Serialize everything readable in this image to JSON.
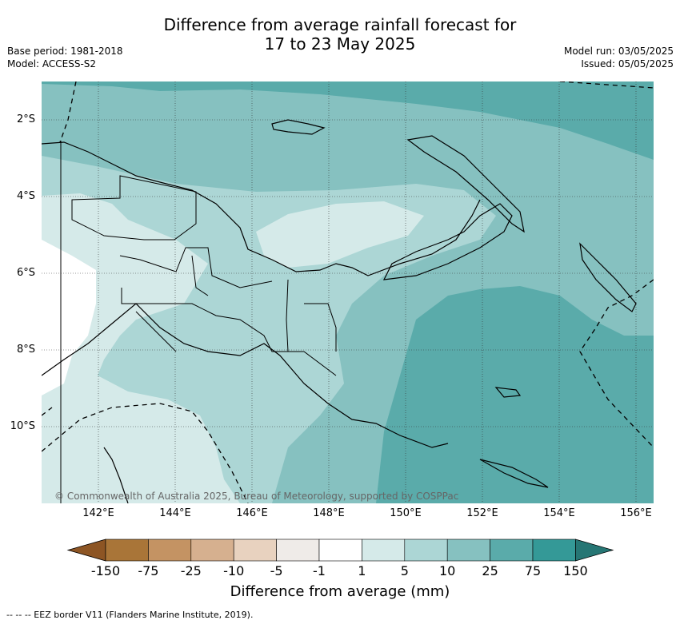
{
  "title_line1": "Difference from average rainfall forecast for",
  "title_line2": "17 to 23 May 2025",
  "left_meta": {
    "line1": "Base period: 1981-2018",
    "line2": "Model: ACCESS-S2"
  },
  "right_meta": {
    "line1": "Model run: 03/05/2025",
    "line2": "Issued: 05/05/2025"
  },
  "copyright": "© Commonwealth of Australia 2025, Bureau of Meteorology, supported by COSPPac",
  "longitudes": [
    "142°E",
    "144°E",
    "146°E",
    "148°E",
    "150°E",
    "152°E",
    "154°E",
    "156°E"
  ],
  "latitudes": [
    "2°S",
    "4°S",
    "6°S",
    "8°S",
    "10°S"
  ],
  "colorbar": {
    "title": "Difference from average (mm)",
    "ticks": [
      "-150",
      "-75",
      "-25",
      "-10",
      "-5",
      "-1",
      "1",
      "5",
      "10",
      "25",
      "75",
      "150"
    ],
    "colors": [
      "#8d5524",
      "#a97538",
      "#c49363",
      "#d6b08f",
      "#e8d2bf",
      "#efebe8",
      "#ffffff",
      "#d5eae9",
      "#acd6d5",
      "#86c1c0",
      "#5aabaa",
      "#349997",
      "#267674"
    ]
  },
  "footer": "--  --  -- EEZ border V11 (Flanders Marine Institute, 2019)."
}
